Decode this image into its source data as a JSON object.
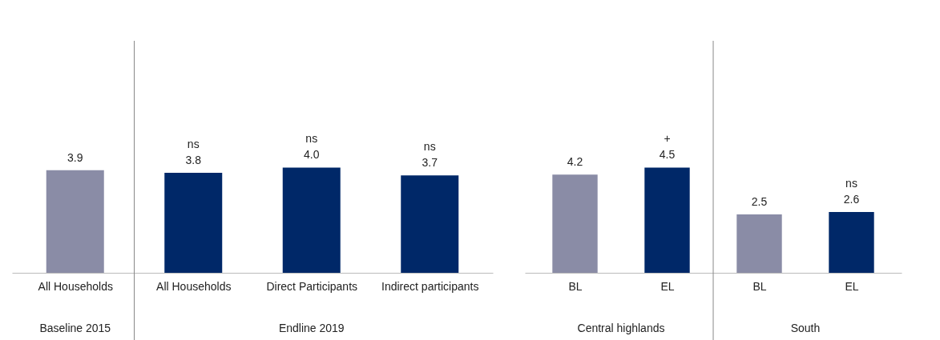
{
  "chart_data": [
    {
      "type": "bar",
      "categories": [
        "All Households",
        "All Households",
        "Direct Participants",
        "Indirect participants"
      ],
      "values": [
        3.9,
        3.8,
        4.0,
        3.7
      ],
      "colors": [
        "#8a8ca6",
        "#002868",
        "#002868",
        "#002868"
      ],
      "value_labels": [
        "3.9",
        "ns\n3.8",
        "ns\n4.0",
        "ns\n3.7"
      ],
      "annotations": [
        "Baseline 2015",
        "Endline 2019"
      ]
    },
    {
      "type": "bar",
      "categories": [
        "BL",
        "EL",
        "BL",
        "EL"
      ],
      "values": [
        4.2,
        4.5,
        2.5,
        2.6
      ],
      "colors": [
        "#8a8ca6",
        "#002868",
        "#8a8ca6",
        "#002868"
      ],
      "value_labels": [
        "4.2",
        "+\n4.5",
        "2.5",
        "ns\n2.6"
      ],
      "annotations": [
        "Central highlands",
        "South"
      ]
    }
  ]
}
